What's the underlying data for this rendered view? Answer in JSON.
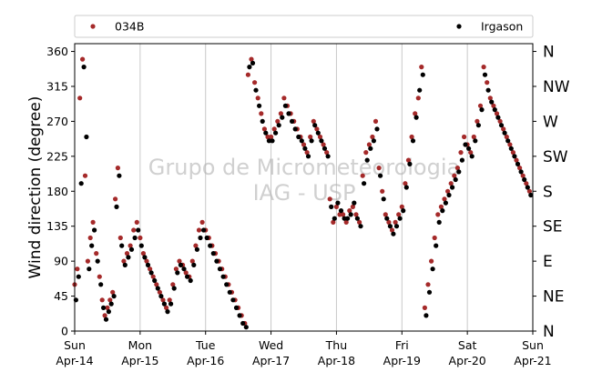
{
  "chart_data": {
    "type": "scatter",
    "title": "",
    "ylabel": "Wind direction (degree)",
    "ylim": [
      0,
      370
    ],
    "xlim": [
      "2019-04-14",
      "2019-04-21"
    ],
    "grid": "vertical lines at day ticks",
    "legend_position": "top, above plot",
    "watermark": [
      "Grupo de Micrometeorologia",
      "IAG - USP"
    ],
    "y_ticks": [
      0,
      45,
      90,
      135,
      180,
      225,
      270,
      315,
      360
    ],
    "x_ticks": [
      {
        "day": "Sun",
        "date": "Apr-14"
      },
      {
        "day": "Mon",
        "date": "Apr-15"
      },
      {
        "day": "Tue",
        "date": "Apr-16"
      },
      {
        "day": "Wed",
        "date": "Apr-17"
      },
      {
        "day": "Thu",
        "date": "Apr-18"
      },
      {
        "day": "Fri",
        "date": "Apr-19"
      },
      {
        "day": "Sat",
        "date": "Apr-20"
      },
      {
        "day": "Sun",
        "date": "Apr-21"
      }
    ],
    "compass_labels": [
      {
        "deg": 0,
        "label": "N"
      },
      {
        "deg": 45,
        "label": "NE"
      },
      {
        "deg": 90,
        "label": "E"
      },
      {
        "deg": 135,
        "label": "SE"
      },
      {
        "deg": 180,
        "label": "S"
      },
      {
        "deg": 225,
        "label": "SW"
      },
      {
        "deg": 270,
        "label": "W"
      },
      {
        "deg": 315,
        "label": "NW"
      },
      {
        "deg": 360,
        "label": "N"
      }
    ],
    "series": [
      {
        "name": "034B",
        "color": "#a52a2a",
        "points": [
          [
            0.0,
            60
          ],
          [
            0.04,
            80
          ],
          [
            0.08,
            300
          ],
          [
            0.12,
            350
          ],
          [
            0.16,
            200
          ],
          [
            0.2,
            90
          ],
          [
            0.24,
            120
          ],
          [
            0.28,
            140
          ],
          [
            0.33,
            100
          ],
          [
            0.38,
            70
          ],
          [
            0.42,
            40
          ],
          [
            0.46,
            20
          ],
          [
            0.5,
            30
          ],
          [
            0.54,
            40
          ],
          [
            0.58,
            50
          ],
          [
            0.62,
            170
          ],
          [
            0.66,
            210
          ],
          [
            0.7,
            120
          ],
          [
            0.75,
            90
          ],
          [
            0.8,
            100
          ],
          [
            0.85,
            110
          ],
          [
            0.9,
            130
          ],
          [
            0.95,
            140
          ],
          [
            1.0,
            120
          ],
          [
            1.05,
            100
          ],
          [
            1.1,
            90
          ],
          [
            1.15,
            80
          ],
          [
            1.2,
            70
          ],
          [
            1.25,
            60
          ],
          [
            1.3,
            50
          ],
          [
            1.35,
            40
          ],
          [
            1.4,
            30
          ],
          [
            1.45,
            40
          ],
          [
            1.5,
            60
          ],
          [
            1.55,
            80
          ],
          [
            1.6,
            90
          ],
          [
            1.65,
            85
          ],
          [
            1.7,
            75
          ],
          [
            1.75,
            70
          ],
          [
            1.8,
            90
          ],
          [
            1.85,
            110
          ],
          [
            1.9,
            130
          ],
          [
            1.95,
            140
          ],
          [
            2.0,
            130
          ],
          [
            2.05,
            120
          ],
          [
            2.1,
            110
          ],
          [
            2.15,
            100
          ],
          [
            2.2,
            90
          ],
          [
            2.25,
            80
          ],
          [
            2.3,
            70
          ],
          [
            2.35,
            60
          ],
          [
            2.4,
            50
          ],
          [
            2.45,
            40
          ],
          [
            2.5,
            30
          ],
          [
            2.55,
            20
          ],
          [
            2.6,
            10
          ],
          [
            2.65,
            330
          ],
          [
            2.7,
            350
          ],
          [
            2.75,
            320
          ],
          [
            2.8,
            300
          ],
          [
            2.85,
            280
          ],
          [
            2.9,
            260
          ],
          [
            2.95,
            250
          ],
          [
            3.0,
            250
          ],
          [
            3.05,
            260
          ],
          [
            3.1,
            270
          ],
          [
            3.15,
            280
          ],
          [
            3.2,
            300
          ],
          [
            3.25,
            290
          ],
          [
            3.3,
            280
          ],
          [
            3.35,
            270
          ],
          [
            3.4,
            260
          ],
          [
            3.45,
            250
          ],
          [
            3.5,
            240
          ],
          [
            3.55,
            230
          ],
          [
            3.6,
            250
          ],
          [
            3.65,
            270
          ],
          [
            3.7,
            260
          ],
          [
            3.75,
            250
          ],
          [
            3.8,
            240
          ],
          [
            3.85,
            230
          ],
          [
            3.9,
            170
          ],
          [
            3.95,
            140
          ],
          [
            4.0,
            160
          ],
          [
            4.05,
            150
          ],
          [
            4.1,
            150
          ],
          [
            4.15,
            140
          ],
          [
            4.2,
            155
          ],
          [
            4.25,
            160
          ],
          [
            4.3,
            150
          ],
          [
            4.35,
            140
          ],
          [
            4.4,
            200
          ],
          [
            4.45,
            230
          ],
          [
            4.5,
            240
          ],
          [
            4.55,
            250
          ],
          [
            4.6,
            270
          ],
          [
            4.65,
            210
          ],
          [
            4.7,
            180
          ],
          [
            4.75,
            150
          ],
          [
            4.8,
            140
          ],
          [
            4.85,
            130
          ],
          [
            4.9,
            140
          ],
          [
            4.95,
            150
          ],
          [
            5.0,
            160
          ],
          [
            5.05,
            190
          ],
          [
            5.1,
            220
          ],
          [
            5.15,
            250
          ],
          [
            5.2,
            280
          ],
          [
            5.25,
            300
          ],
          [
            5.3,
            340
          ],
          [
            5.35,
            30
          ],
          [
            5.4,
            60
          ],
          [
            5.45,
            90
          ],
          [
            5.5,
            120
          ],
          [
            5.55,
            150
          ],
          [
            5.6,
            160
          ],
          [
            5.65,
            170
          ],
          [
            5.7,
            180
          ],
          [
            5.75,
            190
          ],
          [
            5.8,
            200
          ],
          [
            5.85,
            210
          ],
          [
            5.9,
            230
          ],
          [
            5.95,
            250
          ],
          [
            6.0,
            240
          ],
          [
            6.05,
            230
          ],
          [
            6.1,
            250
          ],
          [
            6.15,
            270
          ],
          [
            6.2,
            290
          ],
          [
            6.25,
            340
          ],
          [
            6.3,
            320
          ],
          [
            6.35,
            300
          ],
          [
            6.4,
            290
          ],
          [
            6.45,
            280
          ],
          [
            6.5,
            270
          ],
          [
            6.55,
            260
          ],
          [
            6.6,
            250
          ],
          [
            6.65,
            240
          ],
          [
            6.7,
            230
          ],
          [
            6.75,
            220
          ],
          [
            6.8,
            210
          ],
          [
            6.85,
            200
          ],
          [
            6.9,
            190
          ],
          [
            6.95,
            180
          ]
        ]
      },
      {
        "name": "Irgason",
        "color": "#000000",
        "points": [
          [
            0.02,
            40
          ],
          [
            0.06,
            70
          ],
          [
            0.1,
            190
          ],
          [
            0.14,
            340
          ],
          [
            0.18,
            250
          ],
          [
            0.22,
            80
          ],
          [
            0.26,
            110
          ],
          [
            0.3,
            130
          ],
          [
            0.35,
            90
          ],
          [
            0.4,
            60
          ],
          [
            0.44,
            30
          ],
          [
            0.48,
            15
          ],
          [
            0.52,
            25
          ],
          [
            0.56,
            35
          ],
          [
            0.6,
            45
          ],
          [
            0.64,
            160
          ],
          [
            0.68,
            200
          ],
          [
            0.72,
            110
          ],
          [
            0.77,
            85
          ],
          [
            0.82,
            95
          ],
          [
            0.87,
            105
          ],
          [
            0.92,
            120
          ],
          [
            0.97,
            130
          ],
          [
            1.02,
            110
          ],
          [
            1.07,
            95
          ],
          [
            1.12,
            85
          ],
          [
            1.17,
            75
          ],
          [
            1.22,
            65
          ],
          [
            1.27,
            55
          ],
          [
            1.32,
            45
          ],
          [
            1.37,
            35
          ],
          [
            1.42,
            25
          ],
          [
            1.47,
            35
          ],
          [
            1.52,
            55
          ],
          [
            1.57,
            75
          ],
          [
            1.62,
            85
          ],
          [
            1.67,
            80
          ],
          [
            1.72,
            70
          ],
          [
            1.77,
            65
          ],
          [
            1.82,
            85
          ],
          [
            1.87,
            105
          ],
          [
            1.92,
            120
          ],
          [
            1.97,
            130
          ],
          [
            2.02,
            120
          ],
          [
            2.07,
            110
          ],
          [
            2.12,
            100
          ],
          [
            2.17,
            90
          ],
          [
            2.22,
            80
          ],
          [
            2.27,
            70
          ],
          [
            2.32,
            60
          ],
          [
            2.37,
            50
          ],
          [
            2.42,
            40
          ],
          [
            2.47,
            30
          ],
          [
            2.52,
            20
          ],
          [
            2.57,
            10
          ],
          [
            2.62,
            5
          ],
          [
            2.67,
            340
          ],
          [
            2.72,
            345
          ],
          [
            2.77,
            310
          ],
          [
            2.82,
            290
          ],
          [
            2.87,
            270
          ],
          [
            2.92,
            255
          ],
          [
            2.97,
            245
          ],
          [
            3.02,
            245
          ],
          [
            3.07,
            255
          ],
          [
            3.12,
            265
          ],
          [
            3.17,
            275
          ],
          [
            3.22,
            290
          ],
          [
            3.27,
            280
          ],
          [
            3.32,
            270
          ],
          [
            3.37,
            260
          ],
          [
            3.42,
            250
          ],
          [
            3.47,
            245
          ],
          [
            3.52,
            235
          ],
          [
            3.57,
            225
          ],
          [
            3.62,
            245
          ],
          [
            3.67,
            265
          ],
          [
            3.72,
            255
          ],
          [
            3.77,
            245
          ],
          [
            3.82,
            235
          ],
          [
            3.87,
            225
          ],
          [
            3.92,
            160
          ],
          [
            3.97,
            145
          ],
          [
            4.02,
            165
          ],
          [
            4.07,
            155
          ],
          [
            4.12,
            145
          ],
          [
            4.17,
            145
          ],
          [
            4.22,
            150
          ],
          [
            4.27,
            165
          ],
          [
            4.32,
            145
          ],
          [
            4.37,
            135
          ],
          [
            4.42,
            190
          ],
          [
            4.47,
            220
          ],
          [
            4.52,
            235
          ],
          [
            4.57,
            245
          ],
          [
            4.62,
            260
          ],
          [
            4.67,
            200
          ],
          [
            4.72,
            170
          ],
          [
            4.77,
            145
          ],
          [
            4.82,
            135
          ],
          [
            4.87,
            125
          ],
          [
            4.92,
            135
          ],
          [
            4.97,
            145
          ],
          [
            5.02,
            155
          ],
          [
            5.07,
            185
          ],
          [
            5.12,
            215
          ],
          [
            5.17,
            245
          ],
          [
            5.22,
            275
          ],
          [
            5.27,
            310
          ],
          [
            5.32,
            330
          ],
          [
            5.37,
            20
          ],
          [
            5.42,
            50
          ],
          [
            5.47,
            80
          ],
          [
            5.52,
            110
          ],
          [
            5.57,
            140
          ],
          [
            5.62,
            155
          ],
          [
            5.67,
            165
          ],
          [
            5.72,
            175
          ],
          [
            5.77,
            185
          ],
          [
            5.82,
            195
          ],
          [
            5.87,
            205
          ],
          [
            5.92,
            220
          ],
          [
            5.97,
            240
          ],
          [
            6.02,
            235
          ],
          [
            6.07,
            225
          ],
          [
            6.12,
            245
          ],
          [
            6.17,
            265
          ],
          [
            6.22,
            285
          ],
          [
            6.27,
            330
          ],
          [
            6.32,
            310
          ],
          [
            6.37,
            295
          ],
          [
            6.42,
            285
          ],
          [
            6.47,
            275
          ],
          [
            6.52,
            265
          ],
          [
            6.57,
            255
          ],
          [
            6.62,
            245
          ],
          [
            6.67,
            235
          ],
          [
            6.72,
            225
          ],
          [
            6.77,
            215
          ],
          [
            6.82,
            205
          ],
          [
            6.87,
            195
          ],
          [
            6.92,
            185
          ],
          [
            6.97,
            175
          ]
        ]
      }
    ]
  }
}
